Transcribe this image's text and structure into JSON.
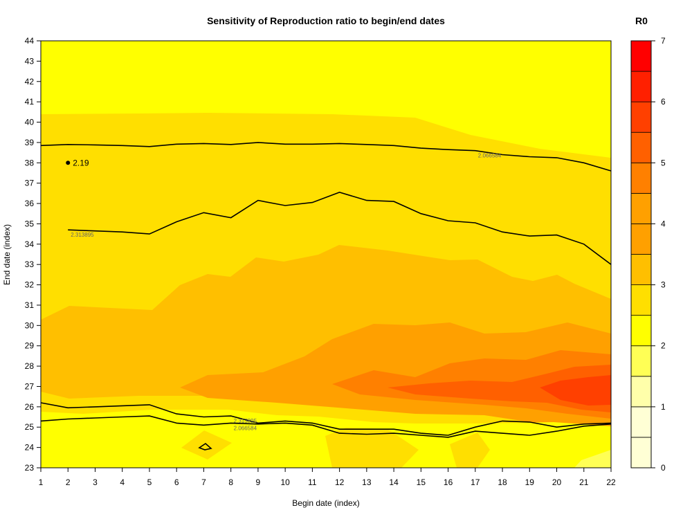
{
  "chart_data": {
    "type": "heatmap",
    "title": "Sensitivity of Reproduction ratio to begin/end dates",
    "xlabel": "Begin date (index)",
    "ylabel": "End date (index)",
    "x_ticks": [
      "1",
      "2",
      "3",
      "4",
      "5",
      "6",
      "7",
      "8",
      "9",
      "10",
      "11",
      "12",
      "13",
      "14",
      "15",
      "16",
      "17",
      "18",
      "19",
      "20",
      "21",
      "22"
    ],
    "y_ticks": [
      "23",
      "24",
      "25",
      "26",
      "27",
      "28",
      "29",
      "30",
      "31",
      "32",
      "33",
      "34",
      "35",
      "36",
      "37",
      "38",
      "39",
      "40",
      "41",
      "42",
      "43",
      "44"
    ],
    "xlim": [
      1,
      22
    ],
    "ylim": [
      23,
      44
    ],
    "legend": {
      "title": "R0",
      "position": "right",
      "ticks": [
        "0",
        "1",
        "2",
        "3",
        "4",
        "5",
        "6",
        "7"
      ],
      "levels": [
        0,
        0.5,
        1,
        1.5,
        2,
        2.5,
        3,
        3.5,
        4,
        4.5,
        5,
        5.5,
        6,
        6.5,
        7
      ],
      "colors": [
        "#FFFFD5",
        "#FFFFAA",
        "#FFFF55",
        "#FFFF00",
        "#FFDF00",
        "#FFBF00",
        "#FFA000",
        "#FF8000",
        "#FF6000",
        "#FF4000",
        "#FF2000",
        "#FF0000"
      ]
    },
    "contour_lines": [
      {
        "label": "2.066584",
        "x": [
          1,
          2,
          3,
          4,
          5,
          6,
          7,
          8,
          9,
          10,
          11,
          12,
          13,
          14,
          15,
          16,
          17,
          18,
          19,
          20,
          21,
          22
        ],
        "y": [
          38.85,
          38.9,
          38.88,
          38.85,
          38.8,
          38.92,
          38.95,
          38.9,
          39.0,
          38.92,
          38.92,
          38.95,
          38.9,
          38.85,
          38.72,
          38.65,
          38.6,
          38.4,
          38.3,
          38.25,
          38.0,
          37.6
        ]
      },
      {
        "label": "2.313895",
        "x": [
          2,
          3,
          4,
          5,
          6,
          7,
          8,
          9,
          10,
          11,
          12,
          13,
          14,
          15,
          16,
          17,
          18,
          19,
          20,
          21,
          22
        ],
        "y": [
          34.7,
          34.65,
          34.6,
          34.5,
          35.1,
          35.55,
          35.3,
          36.15,
          35.9,
          36.05,
          36.55,
          36.15,
          36.1,
          35.5,
          35.15,
          35.05,
          34.6,
          34.4,
          34.45,
          34.0,
          33.0
        ]
      },
      {
        "label": "2.313895",
        "x": [
          1,
          2,
          3,
          4,
          5,
          6,
          7,
          8,
          9,
          10,
          11,
          12,
          13,
          14,
          15,
          16,
          17,
          18,
          19,
          20,
          21,
          22
        ],
        "y": [
          26.2,
          25.95,
          26.0,
          26.05,
          26.1,
          25.65,
          25.5,
          25.55,
          25.2,
          25.3,
          25.2,
          24.9,
          24.9,
          24.9,
          24.7,
          24.6,
          25.0,
          25.3,
          25.25,
          25.0,
          25.15,
          25.2
        ]
      },
      {
        "label": "2.066584",
        "x": [
          1,
          2,
          3,
          4,
          5,
          6,
          7,
          8,
          9,
          10,
          11,
          12,
          13,
          14,
          15,
          16,
          17,
          18,
          19,
          20,
          21,
          22
        ],
        "y": [
          25.3,
          25.4,
          25.45,
          25.5,
          25.55,
          25.2,
          25.1,
          25.2,
          25.15,
          25.2,
          25.1,
          24.7,
          24.65,
          24.7,
          24.6,
          24.5,
          24.8,
          24.7,
          24.6,
          24.8,
          25.05,
          25.15
        ]
      }
    ],
    "annotations": [
      {
        "x": 2,
        "y": 38,
        "text": "2.19"
      }
    ]
  }
}
